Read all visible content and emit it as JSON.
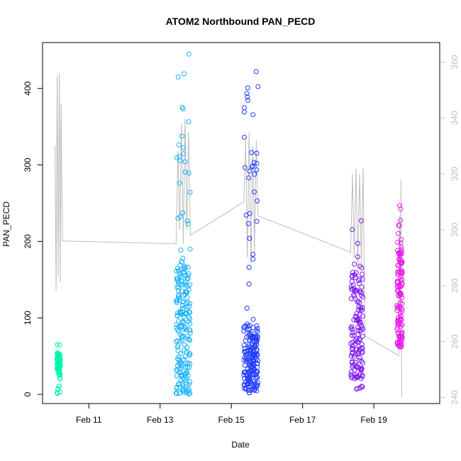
{
  "chart_data": {
    "type": "scatter",
    "title": "ATOM2 Northbound PAN_PECD",
    "xlabel": "Date",
    "ylabel": "PAN_PECD",
    "x_axis": {
      "unit": "day",
      "ticks": [
        {
          "label": "Feb 11",
          "value": 11
        },
        {
          "label": "Feb 13",
          "value": 13
        },
        {
          "label": "Feb 15",
          "value": 15
        },
        {
          "label": "Feb 17",
          "value": 17
        },
        {
          "label": "Feb 19",
          "value": 19
        }
      ],
      "range": [
        9.7,
        20.85
      ]
    },
    "y_axis": {
      "ticks": [
        0,
        100,
        200,
        300,
        400
      ],
      "range": [
        -12,
        460
      ]
    },
    "y2_axis": {
      "ticks": [
        240,
        260,
        280,
        300,
        320,
        340,
        360
      ],
      "range": [
        237.8,
        367.0
      ],
      "color": "#bdbdbd"
    },
    "grid": false,
    "legend": "none",
    "point_style": "open-circle",
    "color_scale": "hue shifts from #00ffa8 on Feb 10 to #ff00ff on Feb 19",
    "series": [
      {
        "color": "#00f5aa",
        "clusters": [
          {
            "x_start": 10.1,
            "x_end": 10.2,
            "y_low": 1,
            "y_high": 65,
            "dense_low": 25,
            "dense_high": 55
          }
        ]
      },
      {
        "color": "#1ab2ff",
        "clusters": [
          {
            "x_start": 13.45,
            "x_end": 13.85,
            "y_low": 1,
            "y_high": 445,
            "dense_low": 0,
            "dense_high": 180
          }
        ]
      },
      {
        "color": "#1f3cff",
        "clusters": [
          {
            "x_start": 15.35,
            "x_end": 15.75,
            "y_low": 2,
            "y_high": 422,
            "dense_low": 5,
            "dense_high": 90
          }
        ]
      },
      {
        "color": "#7b14f0",
        "clusters": [
          {
            "x_start": 18.35,
            "x_end": 18.7,
            "y_low": 7,
            "y_high": 227,
            "dense_low": 20,
            "dense_high": 160
          }
        ]
      },
      {
        "color": "#e81ae8",
        "clusters": [
          {
            "x_start": 19.65,
            "x_end": 19.8,
            "y_low": 62,
            "y_high": 247,
            "dense_low": 65,
            "dense_high": 190
          }
        ]
      }
    ],
    "secondary_line": {
      "color": "#bdbdbd",
      "axis": "right",
      "points": [
        [
          10.05,
          330
        ],
        [
          10.08,
          278
        ],
        [
          10.11,
          355
        ],
        [
          10.14,
          283
        ],
        [
          10.17,
          356
        ],
        [
          10.2,
          281
        ],
        [
          10.22,
          345
        ],
        [
          10.26,
          296
        ],
        [
          13.45,
          295
        ],
        [
          13.5,
          328
        ],
        [
          13.55,
          300
        ],
        [
          13.6,
          338
        ],
        [
          13.65,
          295
        ],
        [
          13.7,
          340
        ],
        [
          13.75,
          300
        ],
        [
          13.8,
          335
        ],
        [
          13.85,
          298
        ],
        [
          15.35,
          310
        ],
        [
          15.4,
          332
        ],
        [
          15.45,
          290
        ],
        [
          15.5,
          335
        ],
        [
          15.55,
          288
        ],
        [
          15.6,
          330
        ],
        [
          15.65,
          292
        ],
        [
          15.7,
          332
        ],
        [
          15.75,
          305
        ],
        [
          18.35,
          292
        ],
        [
          18.4,
          320
        ],
        [
          18.45,
          290
        ],
        [
          18.5,
          322
        ],
        [
          18.55,
          286
        ],
        [
          18.6,
          320
        ],
        [
          18.65,
          288
        ],
        [
          18.7,
          322
        ],
        [
          18.75,
          262
        ],
        [
          19.7,
          255
        ],
        [
          19.72,
          305
        ],
        [
          19.74,
          266
        ],
        [
          19.76,
          318
        ],
        [
          19.78,
          240
        ]
      ]
    }
  }
}
